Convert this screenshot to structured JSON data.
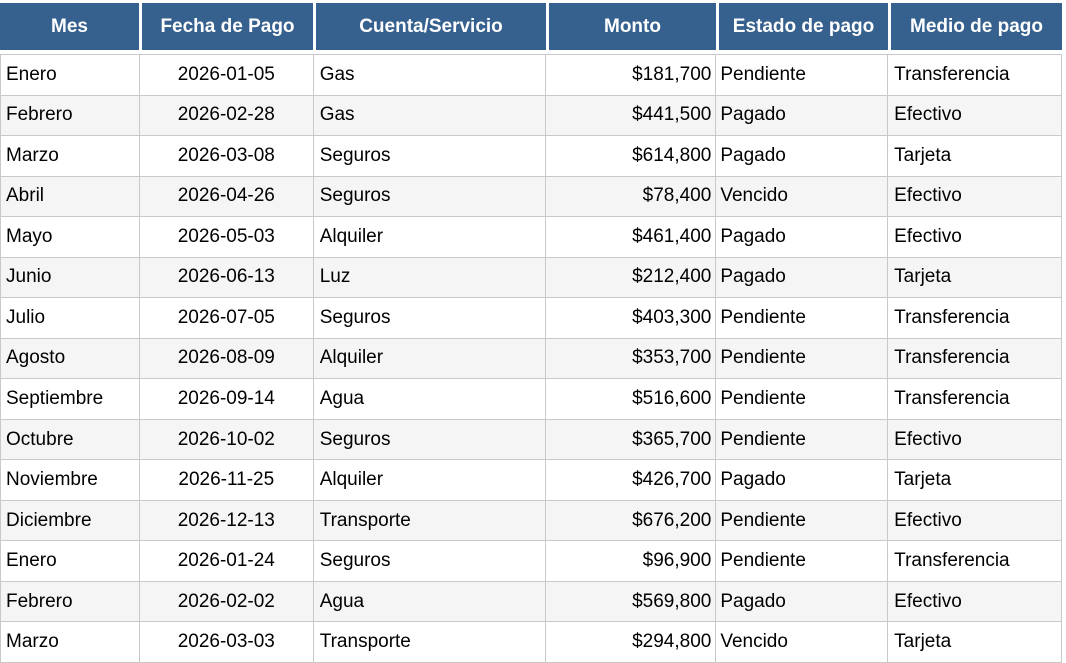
{
  "chart_data": {
    "type": "table",
    "columns": [
      "Mes",
      "Fecha de Pago",
      "Cuenta/Servicio",
      "Monto",
      "Estado de pago",
      "Medio de pago"
    ],
    "column_alignments": [
      "left",
      "center",
      "left",
      "right",
      "left",
      "left"
    ],
    "rows": [
      [
        "Enero",
        "2026-01-05",
        "Gas",
        "$181,700",
        "Pendiente",
        "Transferencia"
      ],
      [
        "Febrero",
        "2026-02-28",
        "Gas",
        "$441,500",
        "Pagado",
        "Efectivo"
      ],
      [
        "Marzo",
        "2026-03-08",
        "Seguros",
        "$614,800",
        "Pagado",
        "Tarjeta"
      ],
      [
        "Abril",
        "2026-04-26",
        "Seguros",
        "$78,400",
        "Vencido",
        "Efectivo"
      ],
      [
        "Mayo",
        "2026-05-03",
        "Alquiler",
        "$461,400",
        "Pagado",
        "Efectivo"
      ],
      [
        "Junio",
        "2026-06-13",
        "Luz",
        "$212,400",
        "Pagado",
        "Tarjeta"
      ],
      [
        "Julio",
        "2026-07-05",
        "Seguros",
        "$403,300",
        "Pendiente",
        "Transferencia"
      ],
      [
        "Agosto",
        "2026-08-09",
        "Alquiler",
        "$353,700",
        "Pendiente",
        "Transferencia"
      ],
      [
        "Septiembre",
        "2026-09-14",
        "Agua",
        "$516,600",
        "Pendiente",
        "Transferencia"
      ],
      [
        "Octubre",
        "2026-10-02",
        "Seguros",
        "$365,700",
        "Pendiente",
        "Efectivo"
      ],
      [
        "Noviembre",
        "2026-11-25",
        "Alquiler",
        "$426,700",
        "Pagado",
        "Tarjeta"
      ],
      [
        "Diciembre",
        "2026-12-13",
        "Transporte",
        "$676,200",
        "Pendiente",
        "Efectivo"
      ],
      [
        "Enero",
        "2026-01-24",
        "Seguros",
        "$96,900",
        "Pendiente",
        "Transferencia"
      ],
      [
        "Febrero",
        "2026-02-02",
        "Agua",
        "$569,800",
        "Pagado",
        "Efectivo"
      ],
      [
        "Marzo",
        "2026-03-03",
        "Transporte",
        "$294,800",
        "Vencido",
        "Tarjeta"
      ]
    ],
    "layout": {
      "grid": true,
      "striped_rows": true,
      "header_position": "top"
    }
  },
  "colors": {
    "header_bg": "#36618F",
    "header_text": "#FFFFFF",
    "row_plain": "#FFFFFF",
    "row_stripe": "#F5F5F5",
    "grid_border": "#C9C9C9",
    "body_text": "#000000"
  }
}
